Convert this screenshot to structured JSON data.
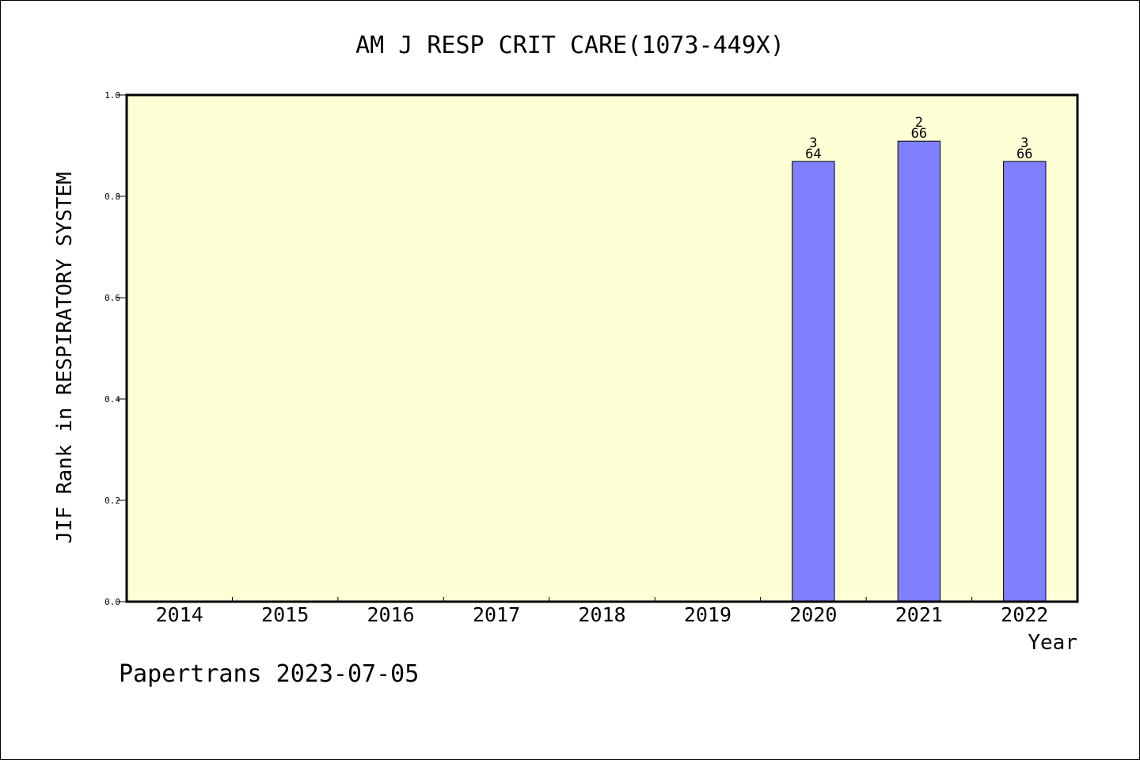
{
  "chart_data": {
    "type": "bar",
    "title": "AM J RESP CRIT CARE(1073-449X)",
    "xlabel": "Year",
    "ylabel": "JIF Rank in RESPIRATORY SYSTEM",
    "ylim": [
      0,
      1.0
    ],
    "yticks": [
      "0.0",
      "0.2",
      "0.4",
      "0.6",
      "0.8",
      "1.0"
    ],
    "categories": [
      "2014",
      "2015",
      "2016",
      "2017",
      "2018",
      "2019",
      "2020",
      "2021",
      "2022"
    ],
    "values": [
      null,
      null,
      null,
      null,
      null,
      null,
      0.869,
      0.909,
      0.869
    ],
    "bar_labels": [
      null,
      null,
      null,
      null,
      null,
      null,
      {
        "rank": "3",
        "total": "64"
      },
      {
        "rank": "2",
        "total": "66"
      },
      {
        "rank": "3",
        "total": "66"
      }
    ],
    "grid": false,
    "colors": {
      "plot_background": "#ffffd6",
      "bar": "#8080ff"
    }
  },
  "footer": {
    "text": "Papertrans 2023-07-05"
  }
}
